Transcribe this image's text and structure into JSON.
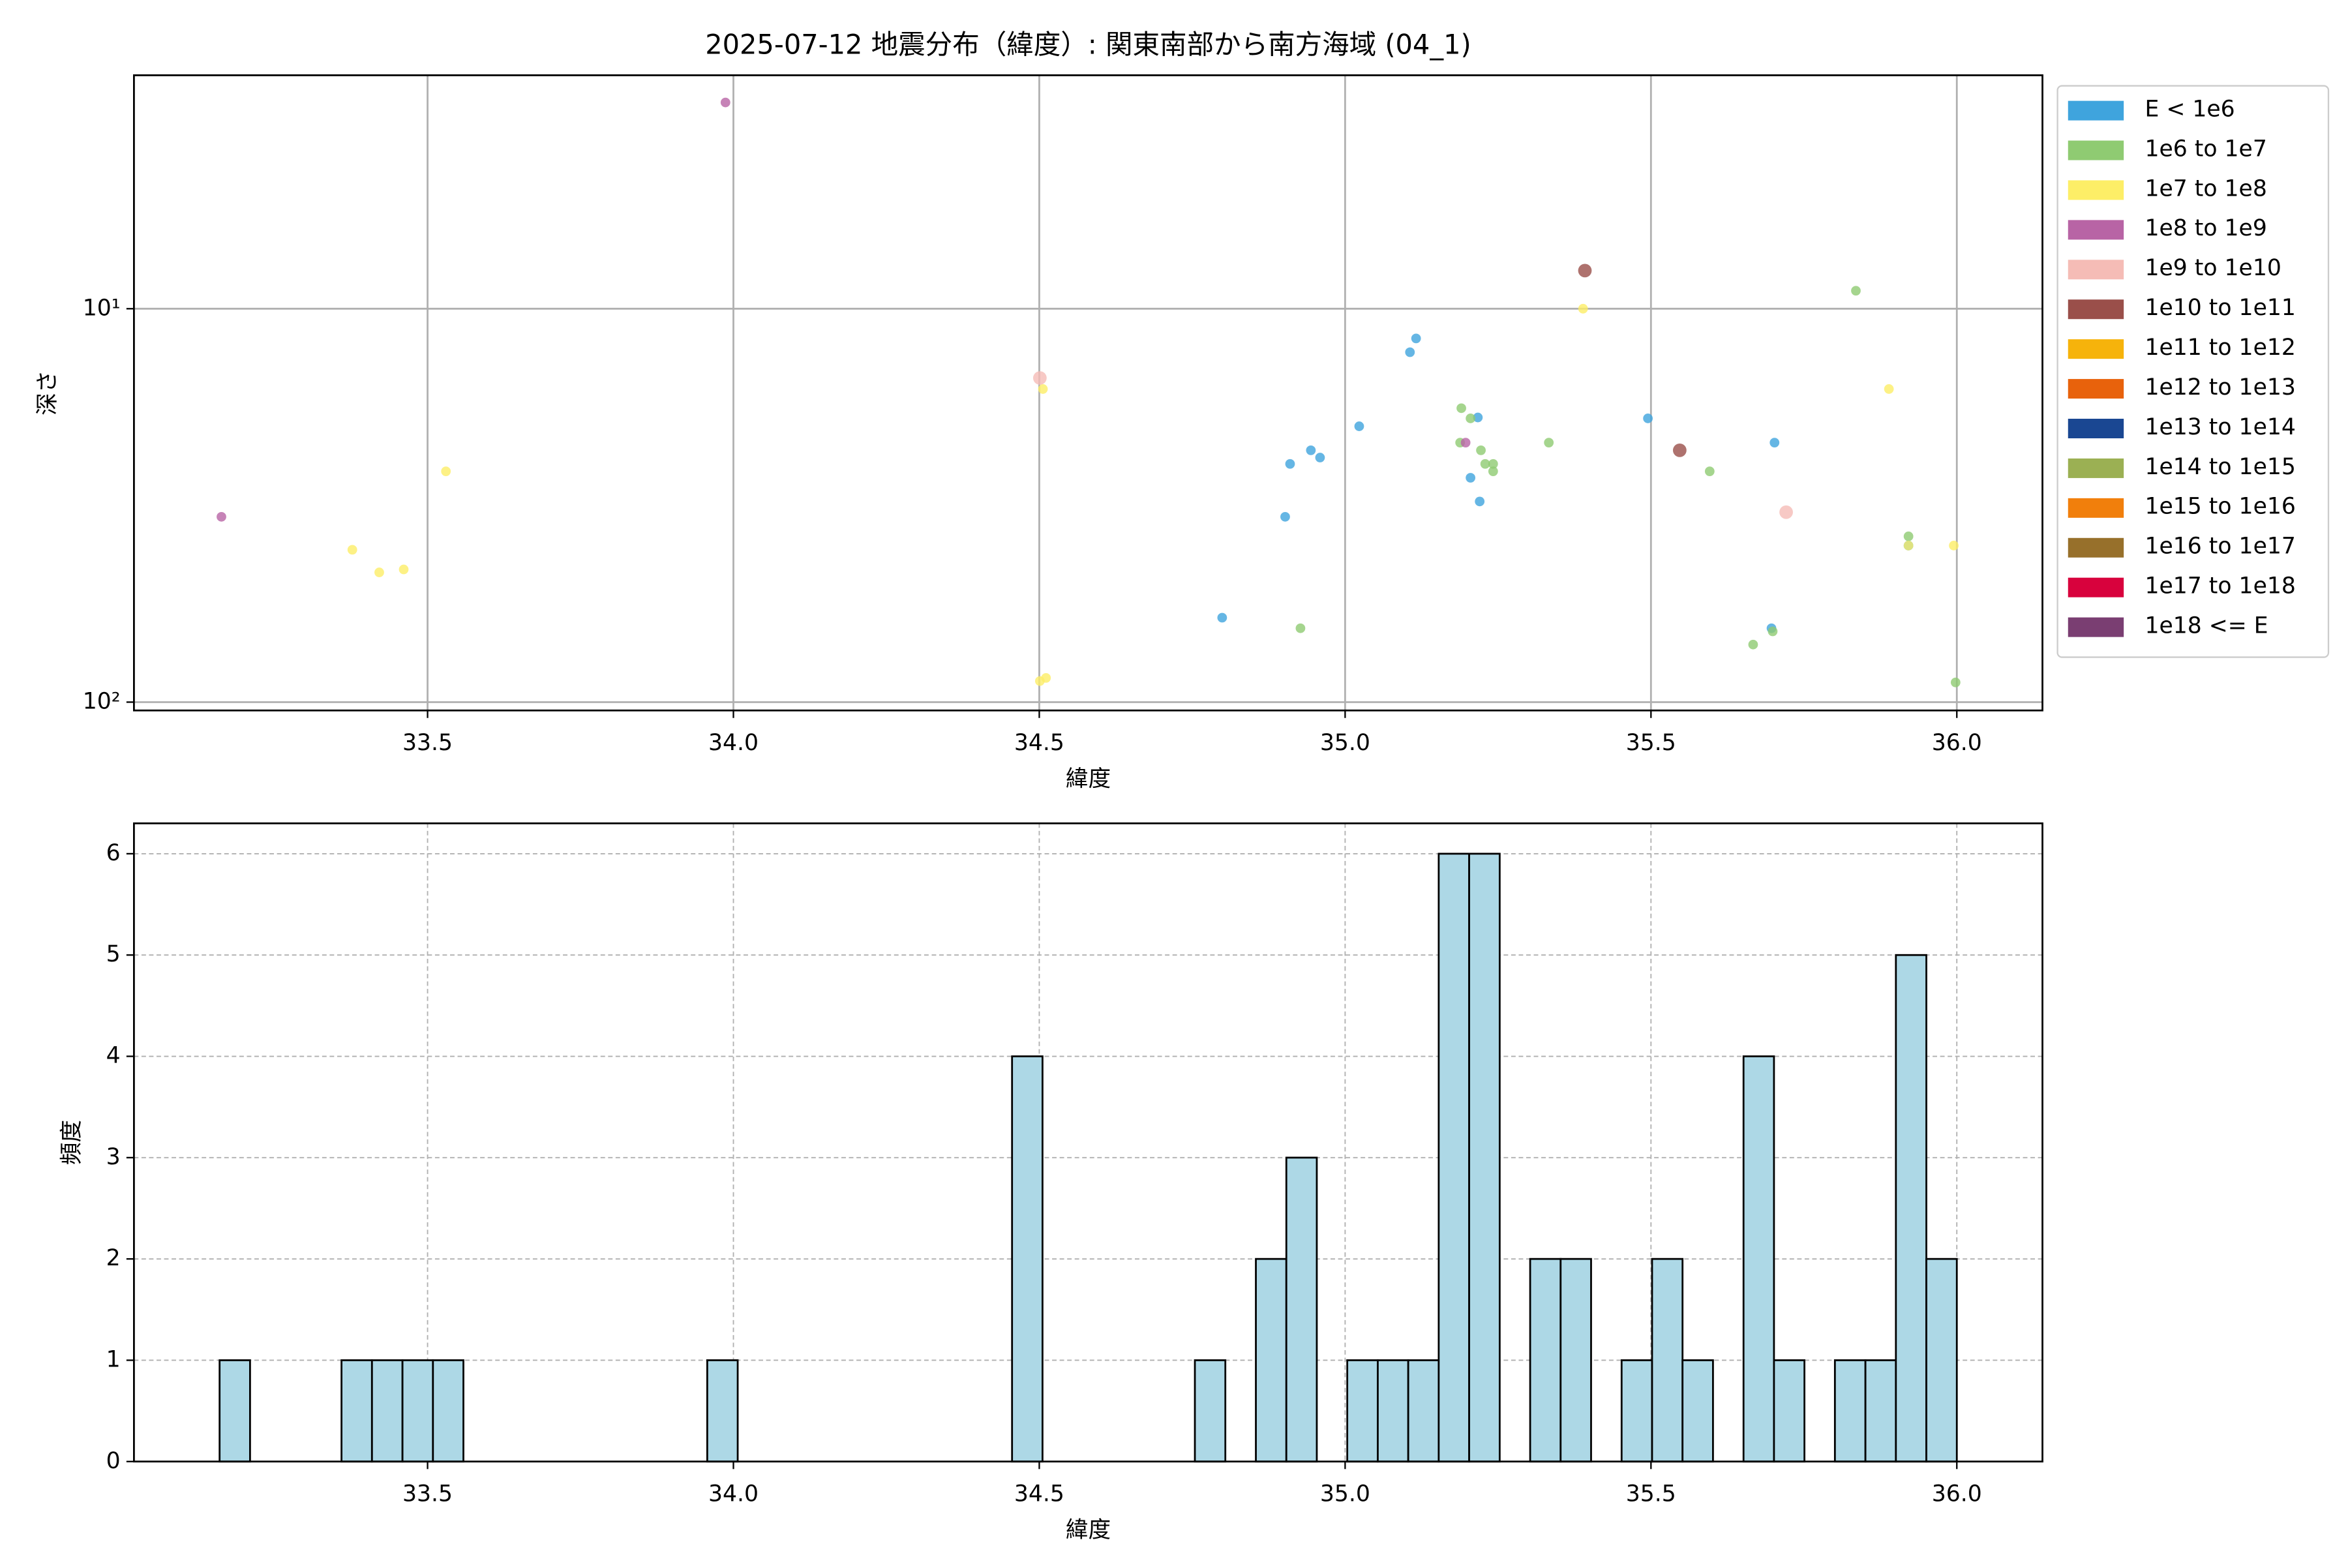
{
  "chart_data": [
    {
      "type": "scatter",
      "title": "2025-07-12 地震分布（緯度）: 関東南部から南方海域 (04_1)",
      "xlabel": "緯度",
      "ylabel": "深さ",
      "xlim": [
        33.02,
        36.14
      ],
      "ylim": [
        2.55,
        105
      ],
      "y_log": true,
      "y_inverted": true,
      "grid": true,
      "legend": "outside right",
      "xticks": [
        33.5,
        {
          "value": 34,
          "label": "34.0"
        },
        34.5,
        {
          "value": 35,
          "label": "35.0"
        },
        35.5,
        {
          "value": 36,
          "label": "36.0"
        }
      ],
      "yticks": [
        {
          "value": 10,
          "label": "10¹"
        },
        {
          "value": 100,
          "label": "10²"
        }
      ],
      "series": [
        {
          "name": "E < 1e6",
          "color": "#3fa4dd",
          "x": [
            34.799,
            34.902,
            34.91,
            34.944,
            34.959,
            35.023,
            35.106,
            35.116,
            35.217,
            35.205,
            35.22,
            35.495,
            35.697,
            35.702,
            35.921
          ],
          "values": [
            61.0,
            33.8,
            24.8,
            22.9,
            23.9,
            19.9,
            12.9,
            11.9,
            18.9,
            26.9,
            30.9,
            19.0,
            64.9,
            21.9,
            40.0
          ]
        },
        {
          "name": "1e6 to 1e7",
          "color": "#8fcb72",
          "x": [
            34.927,
            35.19,
            35.188,
            35.205,
            35.222,
            35.229,
            35.242,
            35.242,
            35.333,
            35.596,
            35.667,
            35.699,
            35.835,
            35.921,
            35.998
          ],
          "values": [
            64.9,
            17.9,
            21.9,
            19.0,
            22.9,
            24.8,
            24.8,
            25.9,
            21.9,
            25.9,
            71.4,
            66.1,
            9.0,
            37.9,
            89.1
          ]
        },
        {
          "name": "1e7 to 1e8",
          "color": "#fdee67",
          "x": [
            33.377,
            33.421,
            33.461,
            33.53,
            34.506,
            34.501,
            34.511,
            35.389,
            35.889,
            35.921,
            35.995
          ],
          "values": [
            41.0,
            46.8,
            46.0,
            25.9,
            16.0,
            88.4,
            86.8,
            10.0,
            16.0,
            40.0,
            40.0
          ]
        },
        {
          "name": "1e8 to 1e9",
          "color": "#b864a5",
          "x": [
            33.163,
            33.987,
            35.197
          ],
          "values": [
            33.8,
            2.99,
            21.9
          ]
        },
        {
          "name": "1e9 to 1e10",
          "color": "#f5bcb6",
          "x": [
            34.501,
            35.721
          ],
          "values": [
            15.0,
            32.9
          ]
        },
        {
          "name": "1e10 to 1e11",
          "color": "#9a4f4a",
          "x": [
            35.392,
            35.547
          ],
          "values": [
            8.0,
            22.9
          ]
        },
        {
          "name": "1e11 to 1e12",
          "color": "#f6b30b",
          "x": [],
          "values": []
        },
        {
          "name": "1e12 to 1e13",
          "color": "#e8620c",
          "x": [],
          "values": []
        },
        {
          "name": "1e13 to 1e14",
          "color": "#1a4792",
          "x": [],
          "values": []
        },
        {
          "name": "1e14 to 1e15",
          "color": "#9bb053",
          "x": [],
          "values": []
        },
        {
          "name": "1e15 to 1e16",
          "color": "#f17f0c",
          "x": [],
          "values": []
        },
        {
          "name": "1e16 to 1e17",
          "color": "#97702b",
          "x": [],
          "values": []
        },
        {
          "name": "1e17 to 1e18",
          "color": "#d8023d",
          "x": [],
          "values": []
        },
        {
          "name": "1e18 <= E",
          "color": "#7a3e72",
          "x": [],
          "values": []
        }
      ]
    },
    {
      "type": "histogram",
      "xlabel": "緯度",
      "ylabel": "頻度",
      "color": "#add8e6",
      "edgecolor": "#000000",
      "xlim": [
        33.02,
        36.14
      ],
      "ylim": [
        0,
        6.3
      ],
      "grid": true,
      "xticks": [
        33.5,
        {
          "value": 34,
          "label": "34.0"
        },
        34.5,
        {
          "value": 35,
          "label": "35.0"
        },
        35.5,
        {
          "value": 36,
          "label": "36.0"
        }
      ],
      "yticks": [
        0,
        1,
        2,
        3,
        4,
        5,
        6
      ],
      "bins": [
        33.16,
        33.2098,
        33.2597,
        33.3095,
        33.3593,
        33.4091,
        33.459,
        33.5088,
        33.5586,
        33.6084,
        33.6583,
        33.7081,
        33.7579,
        33.8077,
        33.8576,
        33.9074,
        33.9572,
        34.007,
        34.0569,
        34.1067,
        34.1565,
        34.2063,
        34.2562,
        34.306,
        34.3558,
        34.4056,
        34.4555,
        34.5053,
        34.5551,
        34.6049,
        34.6548,
        34.7046,
        34.7544,
        34.8042,
        34.8541,
        34.9039,
        34.9537,
        35.0035,
        35.0534,
        35.1032,
        35.153,
        35.2028,
        35.2527,
        35.3025,
        35.3523,
        35.4021,
        35.452,
        35.5018,
        35.5516,
        35.6014,
        35.6513,
        35.7011,
        35.7509,
        35.8007,
        35.8506,
        35.9004,
        35.9502,
        36.0
      ],
      "values": [
        1,
        0,
        0,
        0,
        1,
        1,
        1,
        1,
        0,
        0,
        0,
        0,
        0,
        0,
        0,
        0,
        1,
        0,
        0,
        0,
        0,
        0,
        0,
        0,
        0,
        0,
        4,
        0,
        0,
        0,
        0,
        0,
        1,
        0,
        2,
        3,
        0,
        1,
        1,
        1,
        6,
        6,
        0,
        2,
        2,
        0,
        1,
        2,
        1,
        0,
        4,
        1,
        0,
        1,
        1,
        5,
        2
      ]
    }
  ]
}
